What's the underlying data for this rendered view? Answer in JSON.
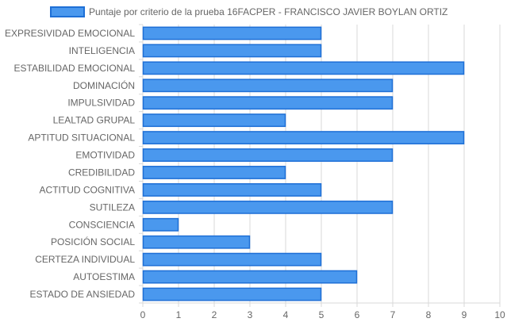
{
  "chart_data": {
    "type": "bar",
    "orientation": "horizontal",
    "categories": [
      "EXPRESIVIDAD EMOCIONAL",
      "INTELIGENCIA",
      "ESTABILIDAD EMOCIONAL",
      "DOMINACIÓN",
      "IMPULSIVIDAD",
      "LEALTAD GRUPAL",
      "APTITUD SITUACIONAL",
      "EMOTIVIDAD",
      "CREDIBILIDAD",
      "ACTITUD COGNITIVA",
      "SUTILEZA",
      "CONSCIENCIA",
      "POSICIÓN SOCIAL",
      "CERTEZA INDIVIDUAL",
      "AUTOESTIMA",
      "ESTADO DE ANSIEDAD"
    ],
    "series": [
      {
        "name": "Puntaje por criterio de la prueba 16FACPER - FRANCISCO JAVIER BOYLAN ORTIZ",
        "values": [
          5,
          5,
          9,
          7,
          7,
          4,
          9,
          7,
          4,
          5,
          7,
          1,
          3,
          5,
          6,
          5
        ],
        "color": "#4a98ee",
        "border_color": "#1e6fd6"
      }
    ],
    "xlim": [
      0,
      10
    ],
    "xticks": [
      "0",
      "1",
      "2",
      "3",
      "4",
      "5",
      "6",
      "7",
      "8",
      "9",
      "10"
    ],
    "grid": true,
    "legend_position": "top",
    "title": "",
    "xlabel": "",
    "ylabel": ""
  },
  "colors": {
    "grid": "#d9d9d9",
    "text": "#666666",
    "bar_fill": "#4a98ee",
    "bar_border": "#1e6fd6"
  }
}
